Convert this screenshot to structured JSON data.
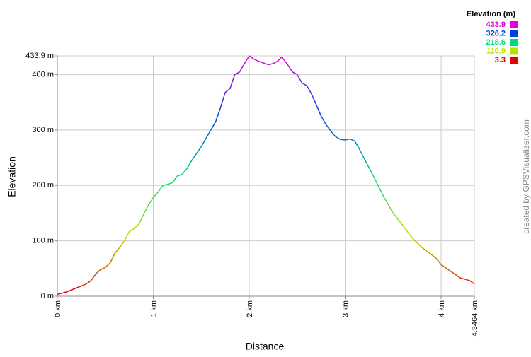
{
  "chart_data": {
    "type": "line",
    "x_label": "Distance",
    "y_label": "Elevation",
    "credit": "created by GPSVisualizer.com",
    "x": [
      0,
      0.1,
      0.2,
      0.3,
      0.35,
      0.4,
      0.45,
      0.5,
      0.55,
      0.6,
      0.65,
      0.7,
      0.75,
      0.8,
      0.85,
      0.9,
      0.95,
      1.0,
      1.05,
      1.1,
      1.15,
      1.2,
      1.25,
      1.3,
      1.35,
      1.4,
      1.5,
      1.6,
      1.65,
      1.7,
      1.75,
      1.8,
      1.85,
      1.9,
      1.95,
      2.0,
      2.05,
      2.1,
      2.2,
      2.25,
      2.3,
      2.34,
      2.4,
      2.45,
      2.5,
      2.55,
      2.6,
      2.65,
      2.7,
      2.75,
      2.8,
      2.85,
      2.9,
      2.95,
      3.0,
      3.05,
      3.1,
      3.15,
      3.2,
      3.3,
      3.4,
      3.5,
      3.6,
      3.7,
      3.8,
      3.9,
      3.95,
      4.0,
      4.1,
      4.2,
      4.3,
      4.3464
    ],
    "values": [
      3.3,
      8,
      15,
      22,
      28,
      40,
      48,
      52,
      60,
      78,
      88,
      100,
      117,
      122,
      130,
      148,
      165,
      178,
      188,
      200,
      202,
      205,
      217,
      220,
      230,
      245,
      270,
      300,
      315,
      340,
      368,
      375,
      400,
      405,
      420,
      433.9,
      428,
      424,
      418,
      420,
      425,
      432,
      418,
      405,
      400,
      385,
      380,
      365,
      345,
      325,
      310,
      298,
      288,
      283,
      282,
      284,
      280,
      265,
      248,
      215,
      180,
      150,
      128,
      105,
      88,
      75,
      68,
      57,
      45,
      33,
      28,
      22
    ],
    "xlim": [
      0,
      4.3464
    ],
    "xticks": [
      {
        "value": 0,
        "label": "0 km"
      },
      {
        "value": 1,
        "label": "1 km"
      },
      {
        "value": 2,
        "label": "2 km"
      },
      {
        "value": 3,
        "label": "3 km"
      },
      {
        "value": 4,
        "label": "4 km"
      },
      {
        "value": 4.3464,
        "label": "4.3464 km"
      }
    ],
    "ylim": [
      0,
      433.9
    ],
    "yticks": [
      {
        "value": 0,
        "label": "0 m"
      },
      {
        "value": 100,
        "label": "100 m"
      },
      {
        "value": 200,
        "label": "200 m"
      },
      {
        "value": 300,
        "label": "300 m"
      },
      {
        "value": 400,
        "label": "400 m"
      },
      {
        "value": 433.9,
        "label": "433.9 m"
      }
    ],
    "grid": true,
    "colorbar": {
      "title": "Elevation (m)",
      "values": [
        433.9,
        326.2,
        218.6,
        110.9,
        3.3
      ],
      "colors": [
        "#e000e0",
        "#0040e0",
        "#00d880",
        "#b8e000",
        "#e00000"
      ]
    }
  }
}
